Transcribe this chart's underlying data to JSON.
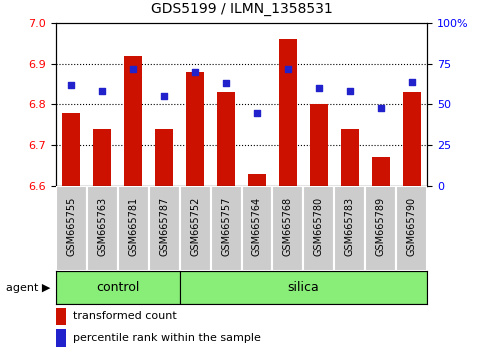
{
  "title": "GDS5199 / ILMN_1358531",
  "samples": [
    "GSM665755",
    "GSM665763",
    "GSM665781",
    "GSM665787",
    "GSM665752",
    "GSM665757",
    "GSM665764",
    "GSM665768",
    "GSM665780",
    "GSM665783",
    "GSM665789",
    "GSM665790"
  ],
  "n_control": 4,
  "n_silica": 8,
  "transformed_count": [
    6.78,
    6.74,
    6.92,
    6.74,
    6.88,
    6.83,
    6.63,
    6.96,
    6.8,
    6.74,
    6.67,
    6.83
  ],
  "percentile_rank": [
    62,
    58,
    72,
    55,
    70,
    63,
    45,
    72,
    60,
    58,
    48,
    64
  ],
  "ylim_left": [
    6.6,
    7.0
  ],
  "ylim_right": [
    0,
    100
  ],
  "yticks_left": [
    6.6,
    6.7,
    6.8,
    6.9,
    7.0
  ],
  "yticks_right": [
    0,
    25,
    50,
    75,
    100
  ],
  "ytick_labels_right": [
    "0",
    "25",
    "50",
    "75",
    "100%"
  ],
  "bar_color": "#cc1100",
  "dot_color": "#2222cc",
  "label_bg_color": "#cccccc",
  "control_color": "#88ee77",
  "silica_color": "#88ee77",
  "group_border_color": "white",
  "agent_label": "agent",
  "legend_bar": "transformed count",
  "legend_dot": "percentile rank within the sample",
  "control_label": "control",
  "silica_label": "silica",
  "bar_bottom": 6.6,
  "bar_width": 0.6,
  "title_fontsize": 10,
  "tick_fontsize": 8,
  "label_fontsize": 7,
  "group_fontsize": 9,
  "legend_fontsize": 8
}
